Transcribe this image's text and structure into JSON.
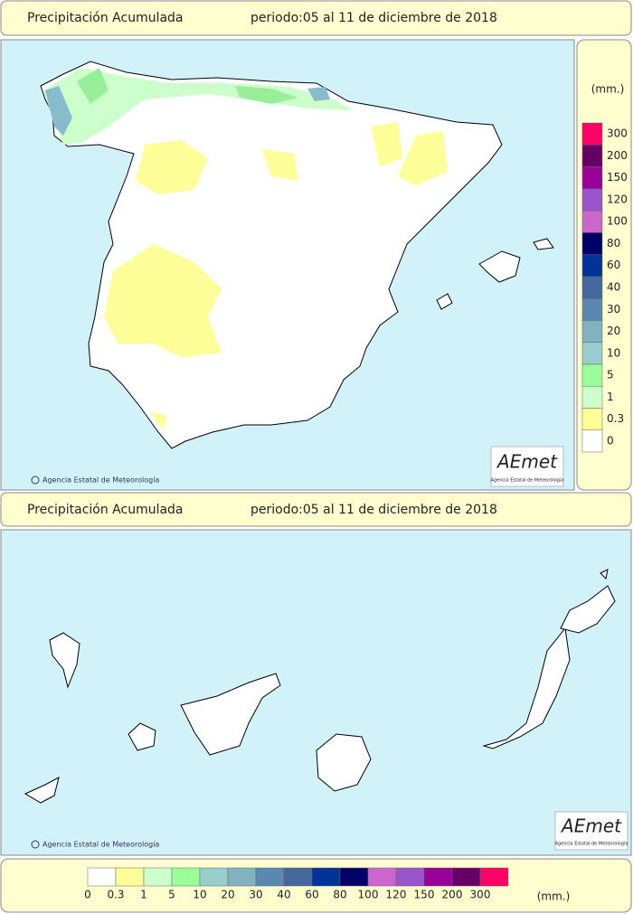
{
  "header": {
    "title": "Precipitación Acumulada",
    "period": "periodo:05 al 11 de diciembre de 2018"
  },
  "peninsula_map": {
    "credit": "Agencia Estatal de Meteorología",
    "logo": "AEmet",
    "logo_caption": "Agencia Estatal de Meteorología"
  },
  "canarias_header": {
    "title": "Precipitación Acumulada",
    "period": "periodo:05 al 11 de diciembre de 2018"
  },
  "canarias_map": {
    "credit": "Agencia Estatal de Meteorología",
    "logo": "AEmet",
    "logo_caption": "Agencia Estatal de Meteorología"
  },
  "legend": {
    "unit": "(mm.)",
    "levels": [
      {
        "value": 0,
        "color": "#ffffff"
      },
      {
        "value": 0.3,
        "color": "#ffff99"
      },
      {
        "value": 1,
        "color": "#ccffcc"
      },
      {
        "value": 5,
        "color": "#99ff99"
      },
      {
        "value": 10,
        "color": "#99cccc"
      },
      {
        "value": 20,
        "color": "#80b3bf"
      },
      {
        "value": 30,
        "color": "#5b88b0"
      },
      {
        "value": 40,
        "color": "#44689e"
      },
      {
        "value": 60,
        "color": "#00339a"
      },
      {
        "value": 80,
        "color": "#000066"
      },
      {
        "value": 100,
        "color": "#cc66cc"
      },
      {
        "value": 120,
        "color": "#9955cc"
      },
      {
        "value": 150,
        "color": "#990099"
      },
      {
        "value": 200,
        "color": "#660066"
      },
      {
        "value": 300,
        "color": "#ff0066"
      }
    ]
  }
}
